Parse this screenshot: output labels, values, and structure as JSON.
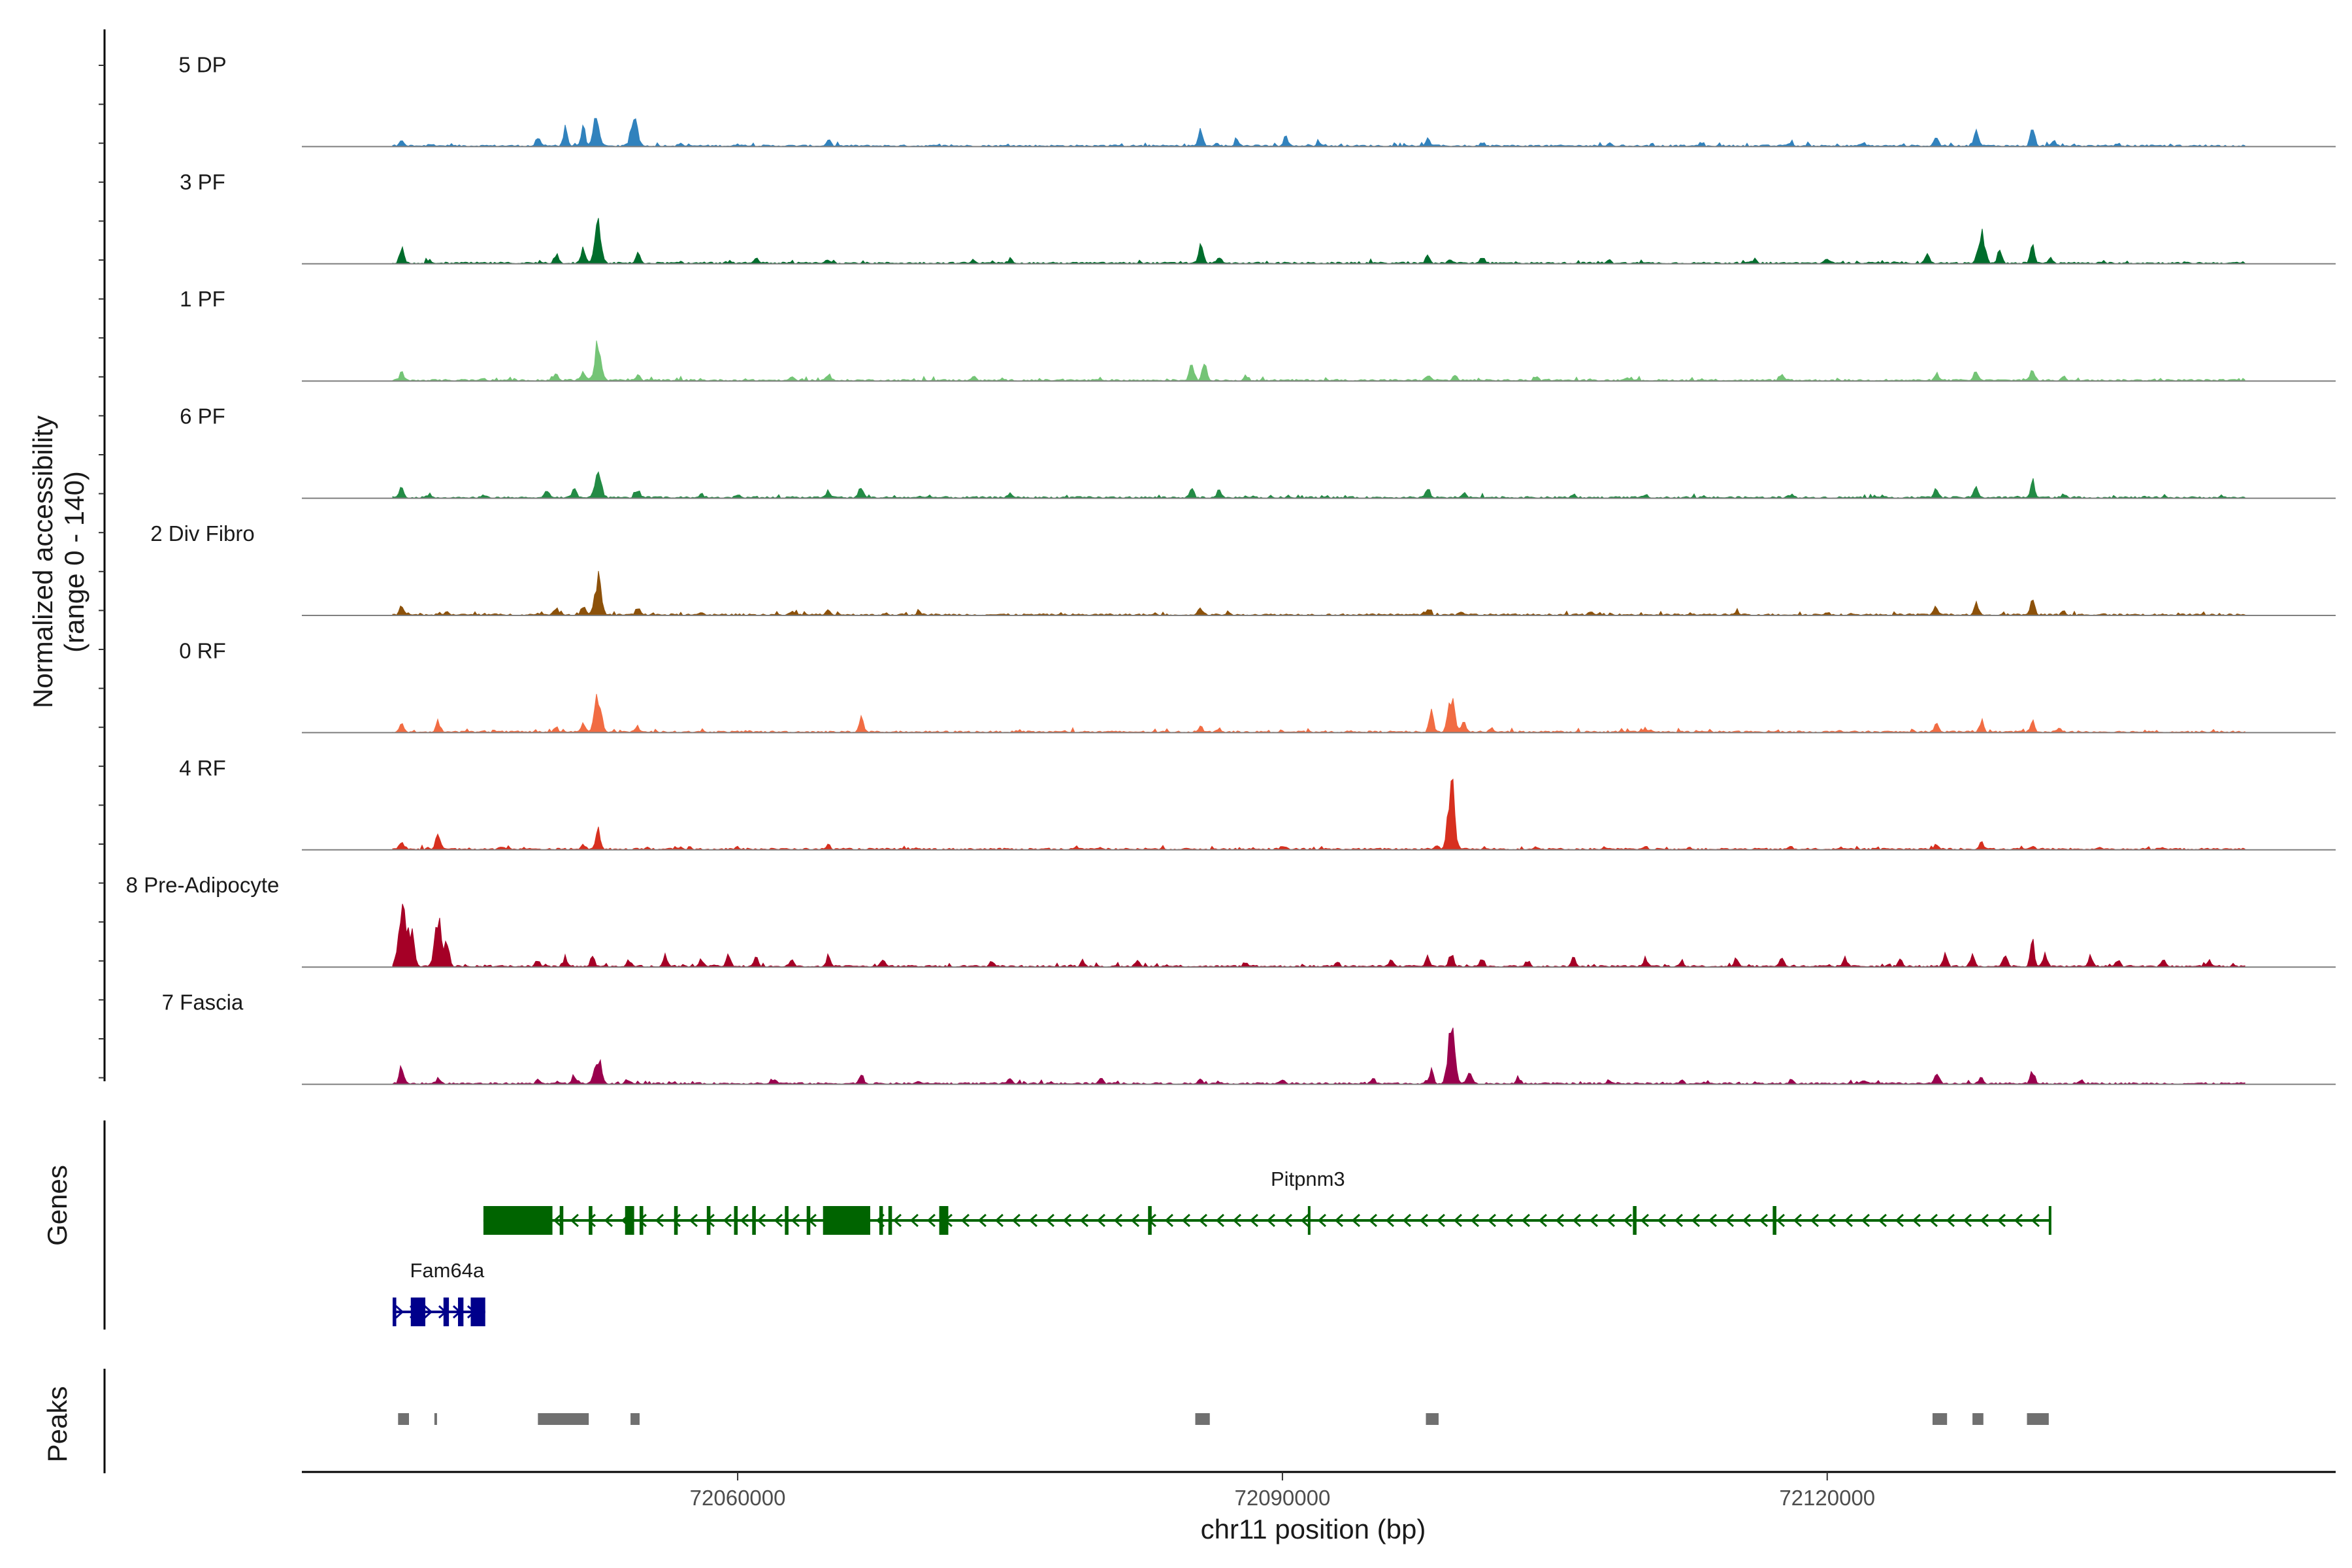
{
  "chart_data": {
    "type": "area",
    "title": "",
    "ylabel_line1": "Normalized accessibility",
    "ylabel_line2": "(range 0 - 140)",
    "ylim": [
      0,
      140
    ],
    "xlabel": "chr11 position (bp)",
    "xlim": [
      72036000,
      72148000
    ],
    "x_ticks": [
      72060000,
      72090000,
      72120000
    ],
    "x_tick_labels": [
      "72060000",
      "72090000",
      "72120000"
    ],
    "signal_start": 72041000,
    "signal_end": 72143000,
    "series": [
      {
        "name": "5 DP",
        "color": "#3182bd",
        "peaks": [
          [
            72041500,
            8
          ],
          [
            72043000,
            2
          ],
          [
            72049000,
            14
          ],
          [
            72050500,
            26
          ],
          [
            72051500,
            30
          ],
          [
            72052200,
            42
          ],
          [
            72054300,
            46
          ],
          [
            72056800,
            4
          ],
          [
            72060000,
            3
          ],
          [
            72065000,
            9
          ],
          [
            72080000,
            2
          ],
          [
            72085500,
            24
          ],
          [
            72087500,
            10
          ],
          [
            72090200,
            16
          ],
          [
            72092000,
            6
          ],
          [
            72098000,
            12
          ],
          [
            72101000,
            6
          ],
          [
            72108000,
            4
          ],
          [
            72113000,
            4
          ],
          [
            72118000,
            6
          ],
          [
            72122000,
            4
          ],
          [
            72126000,
            16
          ],
          [
            72128200,
            24
          ],
          [
            72131300,
            30
          ],
          [
            72132500,
            8
          ],
          [
            72136000,
            4
          ]
        ]
      },
      {
        "name": "3 PF",
        "color": "#006d2c",
        "peaks": [
          [
            72041500,
            24
          ],
          [
            72043000,
            6
          ],
          [
            72050000,
            14
          ],
          [
            72051500,
            22
          ],
          [
            72052300,
            58
          ],
          [
            72054500,
            16
          ],
          [
            72061000,
            8
          ],
          [
            72065000,
            6
          ],
          [
            72073000,
            6
          ],
          [
            72075000,
            6
          ],
          [
            72085500,
            34
          ],
          [
            72086500,
            12
          ],
          [
            72098000,
            10
          ],
          [
            72099200,
            6
          ],
          [
            72101000,
            10
          ],
          [
            72108000,
            4
          ],
          [
            72116000,
            6
          ],
          [
            72120000,
            6
          ],
          [
            72125500,
            18
          ],
          [
            72128500,
            46
          ],
          [
            72129500,
            20
          ],
          [
            72131300,
            28
          ],
          [
            72132300,
            10
          ]
        ]
      },
      {
        "name": "1 PF",
        "color": "#74c476",
        "peaks": [
          [
            72041500,
            12
          ],
          [
            72046000,
            3
          ],
          [
            72050000,
            10
          ],
          [
            72051500,
            14
          ],
          [
            72052300,
            56
          ],
          [
            72054500,
            10
          ],
          [
            72063000,
            6
          ],
          [
            72065000,
            8
          ],
          [
            72073000,
            4
          ],
          [
            72085000,
            34
          ],
          [
            72085700,
            30
          ],
          [
            72088000,
            8
          ],
          [
            72098000,
            10
          ],
          [
            72099500,
            8
          ],
          [
            72104000,
            4
          ],
          [
            72109000,
            4
          ],
          [
            72117500,
            10
          ],
          [
            72126000,
            12
          ],
          [
            72128200,
            14
          ],
          [
            72131300,
            18
          ],
          [
            72133000,
            6
          ]
        ]
      },
      {
        "name": "6 PF",
        "color": "#238b45",
        "peaks": [
          [
            72041500,
            18
          ],
          [
            72043000,
            6
          ],
          [
            72046000,
            4
          ],
          [
            72049500,
            10
          ],
          [
            72051000,
            16
          ],
          [
            72052300,
            44
          ],
          [
            72054500,
            12
          ],
          [
            72058000,
            6
          ],
          [
            72060000,
            4
          ],
          [
            72065000,
            10
          ],
          [
            72066800,
            18
          ],
          [
            72075000,
            6
          ],
          [
            72085000,
            14
          ],
          [
            72086500,
            12
          ],
          [
            72098000,
            14
          ],
          [
            72100000,
            8
          ],
          [
            72106000,
            4
          ],
          [
            72110000,
            4
          ],
          [
            72118000,
            6
          ],
          [
            72126000,
            14
          ],
          [
            72128200,
            18
          ],
          [
            72131300,
            26
          ],
          [
            72133000,
            6
          ]
        ]
      },
      {
        "name": "2 Div Fibro",
        "color": "#8c510a",
        "peaks": [
          [
            72041500,
            16
          ],
          [
            72044000,
            4
          ],
          [
            72050000,
            10
          ],
          [
            72051500,
            16
          ],
          [
            72052300,
            60
          ],
          [
            72054500,
            12
          ],
          [
            72058000,
            4
          ],
          [
            72063000,
            6
          ],
          [
            72065000,
            6
          ],
          [
            72070000,
            4
          ],
          [
            72085500,
            12
          ],
          [
            72087000,
            4
          ],
          [
            72098000,
            10
          ],
          [
            72099800,
            6
          ],
          [
            72107000,
            4
          ],
          [
            72115000,
            4
          ],
          [
            72120000,
            4
          ],
          [
            72126000,
            12
          ],
          [
            72128200,
            18
          ],
          [
            72131300,
            26
          ],
          [
            72133000,
            6
          ]
        ]
      },
      {
        "name": "0 RF",
        "color": "#f16c43",
        "peaks": [
          [
            72041500,
            14
          ],
          [
            72043500,
            16
          ],
          [
            72050000,
            8
          ],
          [
            72051500,
            14
          ],
          [
            72052300,
            56
          ],
          [
            72054500,
            8
          ],
          [
            72066800,
            22
          ],
          [
            72085500,
            10
          ],
          [
            72086500,
            6
          ],
          [
            72098200,
            32
          ],
          [
            72099300,
            52
          ],
          [
            72100000,
            18
          ],
          [
            72101500,
            6
          ],
          [
            72110000,
            4
          ],
          [
            72126000,
            12
          ],
          [
            72128500,
            18
          ],
          [
            72131300,
            16
          ],
          [
            72132800,
            6
          ]
        ]
      },
      {
        "name": "4 RF",
        "color": "#d7301f",
        "peaks": [
          [
            72041500,
            12
          ],
          [
            72043500,
            26
          ],
          [
            72047000,
            4
          ],
          [
            72051500,
            8
          ],
          [
            72052300,
            36
          ],
          [
            72055000,
            4
          ],
          [
            72060000,
            4
          ],
          [
            72065000,
            6
          ],
          [
            72080000,
            3
          ],
          [
            72090000,
            4
          ],
          [
            72098500,
            6
          ],
          [
            72099300,
            110
          ],
          [
            72104000,
            4
          ],
          [
            72110000,
            4
          ],
          [
            72118000,
            4
          ],
          [
            72126000,
            8
          ],
          [
            72128500,
            10
          ],
          [
            72131300,
            6
          ],
          [
            72135000,
            4
          ]
        ]
      },
      {
        "name": "8 Pre-Adipocyte",
        "color": "#a50026",
        "peaks": [
          [
            72041500,
            98
          ],
          [
            72042000,
            60
          ],
          [
            72043500,
            72
          ],
          [
            72044000,
            40
          ],
          [
            72049000,
            10
          ],
          [
            72050500,
            14
          ],
          [
            72052000,
            16
          ],
          [
            72054000,
            10
          ],
          [
            72056000,
            16
          ],
          [
            72058000,
            12
          ],
          [
            72059500,
            20
          ],
          [
            72061000,
            16
          ],
          [
            72063000,
            12
          ],
          [
            72065000,
            18
          ],
          [
            72068000,
            10
          ],
          [
            72074000,
            8
          ],
          [
            72079000,
            10
          ],
          [
            72082000,
            8
          ],
          [
            72088000,
            6
          ],
          [
            72093000,
            8
          ],
          [
            72096000,
            8
          ],
          [
            72098000,
            14
          ],
          [
            72099300,
            22
          ],
          [
            72101000,
            12
          ],
          [
            72103500,
            10
          ],
          [
            72106000,
            14
          ],
          [
            72110000,
            10
          ],
          [
            72112000,
            8
          ],
          [
            72115000,
            12
          ],
          [
            72117500,
            16
          ],
          [
            72121000,
            14
          ],
          [
            72124000,
            12
          ],
          [
            72126500,
            18
          ],
          [
            72128000,
            20
          ],
          [
            72129800,
            22
          ],
          [
            72131300,
            38
          ],
          [
            72132000,
            22
          ],
          [
            72134500,
            16
          ],
          [
            72136000,
            12
          ],
          [
            72138500,
            12
          ],
          [
            72141000,
            10
          ]
        ]
      },
      {
        "name": "7 Fascia",
        "color": "#99004d",
        "peaks": [
          [
            72041500,
            30
          ],
          [
            72043500,
            10
          ],
          [
            72049000,
            8
          ],
          [
            72051000,
            12
          ],
          [
            72052300,
            44
          ],
          [
            72054000,
            6
          ],
          [
            72062000,
            6
          ],
          [
            72066800,
            14
          ],
          [
            72070000,
            4
          ],
          [
            72075000,
            6
          ],
          [
            72080000,
            8
          ],
          [
            72085500,
            8
          ],
          [
            72090000,
            6
          ],
          [
            72095000,
            10
          ],
          [
            72098200,
            20
          ],
          [
            72099300,
            92
          ],
          [
            72100300,
            22
          ],
          [
            72103000,
            10
          ],
          [
            72108000,
            6
          ],
          [
            72112000,
            6
          ],
          [
            72118000,
            6
          ],
          [
            72122000,
            6
          ],
          [
            72126000,
            14
          ],
          [
            72128500,
            10
          ],
          [
            72131300,
            20
          ],
          [
            72134000,
            6
          ]
        ]
      }
    ],
    "genes_label": "Genes",
    "genes": [
      {
        "name": "Pitpnm3",
        "color": "#006400",
        "strand": "-",
        "start": 72046000,
        "end": 72132300,
        "exons": [
          [
            72046000,
            72049800
          ],
          [
            72050200,
            72050400
          ],
          [
            72051800,
            72052000
          ],
          [
            72053800,
            72054300
          ],
          [
            72054600,
            72054800
          ],
          [
            72056500,
            72056700
          ],
          [
            72058300,
            72058500
          ],
          [
            72059800,
            72060000
          ],
          [
            72060800,
            72061000
          ],
          [
            72062600,
            72062800
          ],
          [
            72063800,
            72064000
          ],
          [
            72064700,
            72067300
          ],
          [
            72067800,
            72068000
          ],
          [
            72068300,
            72068500
          ],
          [
            72071100,
            72071600
          ],
          [
            72082600,
            72082800
          ],
          [
            72091400,
            72091500
          ],
          [
            72109300,
            72109500
          ],
          [
            72117000,
            72117200
          ],
          [
            72132200,
            72132300
          ]
        ]
      },
      {
        "name": "Fam64a",
        "color": "#00008b",
        "strand": "+",
        "start": 72041000,
        "end": 72046100,
        "exons": [
          [
            72041000,
            72041200
          ],
          [
            72042000,
            72042800
          ],
          [
            72043800,
            72044100
          ],
          [
            72044600,
            72044900
          ],
          [
            72045300,
            72046100
          ]
        ]
      }
    ],
    "peaks_label": "Peaks",
    "peaks": [
      [
        72041300,
        72041900
      ],
      [
        72043300,
        72043400
      ],
      [
        72049000,
        72051800
      ],
      [
        72054100,
        72054600
      ],
      [
        72085200,
        72086000
      ],
      [
        72097900,
        72098600
      ],
      [
        72125800,
        72126600
      ],
      [
        72128000,
        72128600
      ],
      [
        72131000,
        72132200
      ]
    ]
  }
}
